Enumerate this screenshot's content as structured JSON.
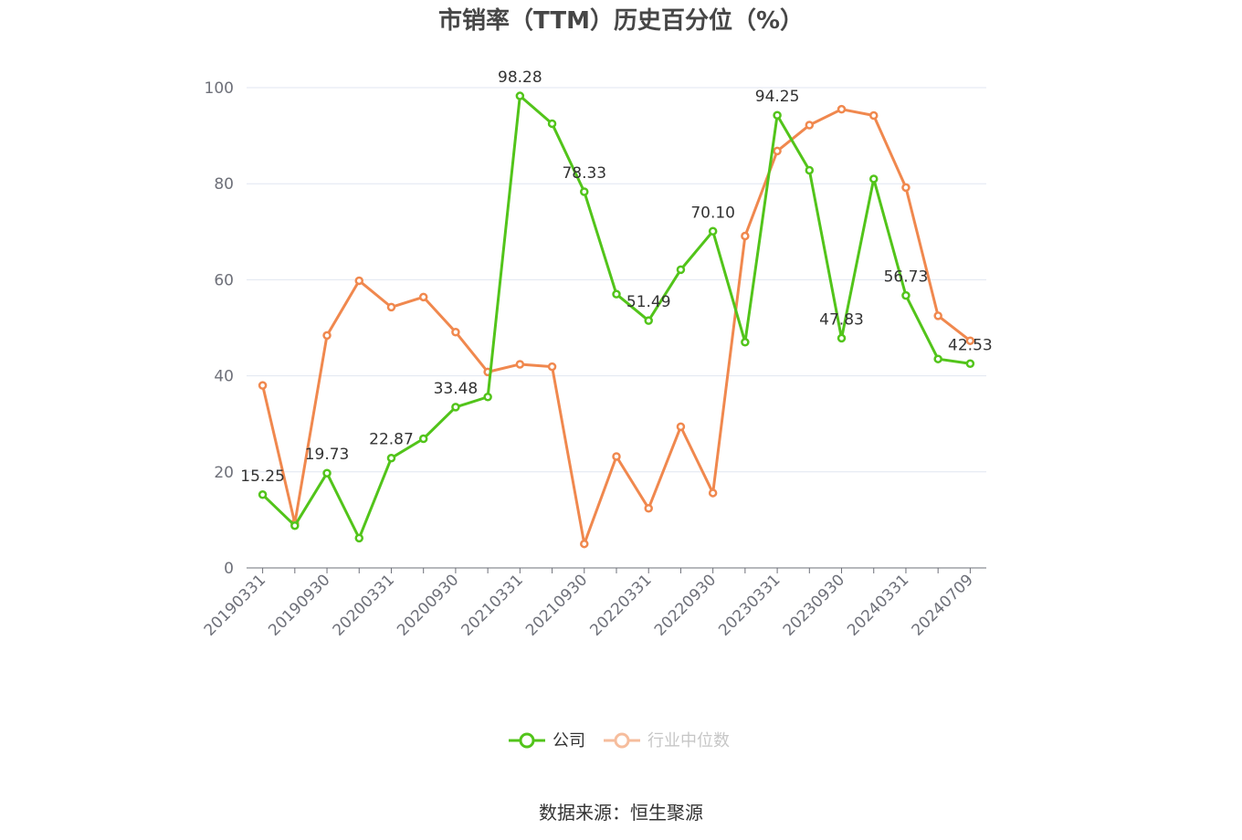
{
  "chart_data": {
    "type": "line",
    "title": "市销率（TTM）历史百分位（%）",
    "source": "数据来源：恒生聚源",
    "ylim": [
      0,
      100
    ],
    "yticks": [
      0,
      20,
      40,
      60,
      80,
      100
    ],
    "grid": true,
    "legend_position": "bottom",
    "x": [
      "20190331",
      "20190630",
      "20190930",
      "20191231",
      "20200331",
      "20200630",
      "20200930",
      "20201231",
      "20210331",
      "20210630",
      "20210930",
      "20211231",
      "20220331",
      "20220630",
      "20220930",
      "20221231",
      "20230331",
      "20230630",
      "20230930",
      "20231231",
      "20240331",
      "20240630",
      "20240709"
    ],
    "x_tick_labels": [
      "20190331",
      "20190930",
      "20200331",
      "20200930",
      "20210331",
      "20210930",
      "20220331",
      "20220930",
      "20230331",
      "20230930",
      "20240331",
      "20240709"
    ],
    "series": [
      {
        "name": "公司",
        "color": "#52c41a",
        "values": [
          15.25,
          8.8,
          19.73,
          6.2,
          22.87,
          26.9,
          33.48,
          35.6,
          98.28,
          92.5,
          78.33,
          57.0,
          51.49,
          62.1,
          70.1,
          47.0,
          94.25,
          82.8,
          47.83,
          81.0,
          56.73,
          43.5,
          42.53
        ],
        "labels": [
          "15.25",
          "",
          "19.73",
          "",
          "22.87",
          "",
          "33.48",
          "",
          "98.28",
          "",
          "78.33",
          "",
          "51.49",
          "",
          "70.10",
          "",
          "94.25",
          "",
          "47.83",
          "",
          "56.73",
          "",
          "42.53"
        ]
      },
      {
        "name": "行业中位数",
        "color": "#f0884e",
        "values": [
          38.0,
          9.3,
          48.4,
          59.8,
          54.3,
          56.4,
          49.1,
          40.8,
          42.4,
          41.9,
          5.0,
          23.2,
          12.4,
          29.4,
          15.6,
          69.1,
          86.8,
          92.2,
          95.5,
          94.2,
          79.2,
          52.5,
          47.3
        ]
      }
    ]
  }
}
